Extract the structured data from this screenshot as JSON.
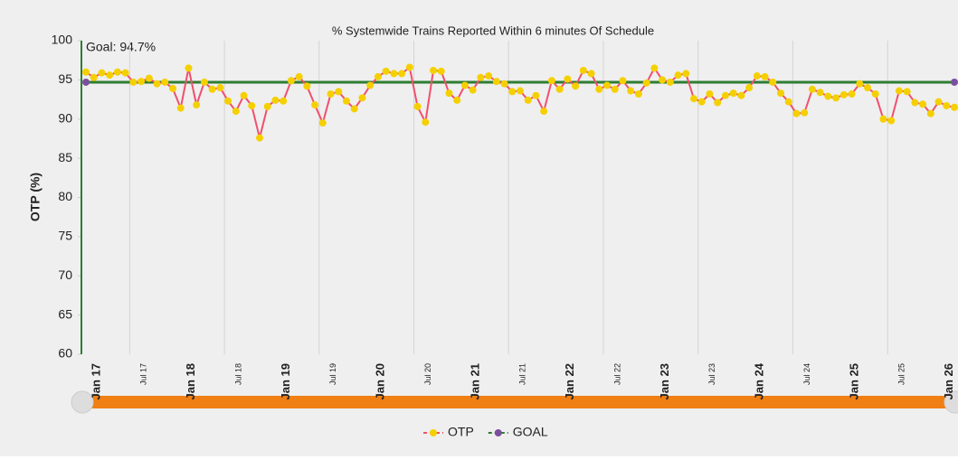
{
  "chart_data": {
    "type": "line",
    "title": "% Systemwide Trains Reported Within 6 minutes Of Schedule",
    "y_label": "OTP (%)",
    "annotation": "Goal: 94.7%",
    "categories": [
      "Jan 17",
      null,
      null,
      null,
      null,
      null,
      "Jul 17",
      null,
      null,
      null,
      null,
      null,
      "Jan 18",
      null,
      null,
      null,
      null,
      null,
      "Jul 18",
      null,
      null,
      null,
      null,
      null,
      "Jan 19",
      null,
      null,
      null,
      null,
      null,
      "Jul 19",
      null,
      null,
      null,
      null,
      null,
      "Jan 20",
      null,
      null,
      null,
      null,
      null,
      "Jul 20",
      null,
      null,
      null,
      null,
      null,
      "Jan 21",
      null,
      null,
      null,
      null,
      null,
      "Jul 21",
      null,
      null,
      null,
      null,
      null,
      "Jan 22",
      null,
      null,
      null,
      null,
      null,
      "Jul 22",
      null,
      null,
      null,
      null,
      null,
      "Jan 23",
      null,
      null,
      null,
      null,
      null,
      "Jul 23",
      null,
      null,
      null,
      null,
      null,
      "Jan 24",
      null,
      null,
      null,
      null,
      null,
      "Jul 24",
      null,
      null,
      null,
      null,
      null,
      "Jan 25",
      null,
      null,
      null,
      null,
      null,
      "Jul 25",
      null,
      null,
      null,
      null,
      null,
      "Jan 26",
      null,
      null
    ],
    "series": [
      {
        "name": "OTP",
        "color": "#f0506e",
        "marker_color": "#f5d000",
        "values": [
          96,
          95.3,
          95.9,
          95.6,
          96,
          95.9,
          94.7,
          94.8,
          95.2,
          94.5,
          94.7,
          93.9,
          91.4,
          96.5,
          91.8,
          94.7,
          93.8,
          94,
          92.3,
          91,
          93,
          91.7,
          87.6,
          91.6,
          92.4,
          92.3,
          94.9,
          95.4,
          94.2,
          91.8,
          89.5,
          93.2,
          93.5,
          92.3,
          91.3,
          92.7,
          94.3,
          95.4,
          96.1,
          95.8,
          95.8,
          96.6,
          91.6,
          89.6,
          96.2,
          96.1,
          93.3,
          92.4,
          94.3,
          93.7,
          95.3,
          95.5,
          94.8,
          94.5,
          93.5,
          93.6,
          92.4,
          93,
          91,
          94.9,
          93.8,
          95.1,
          94.2,
          96.2,
          95.8,
          93.8,
          94.3,
          93.8,
          94.9,
          93.6,
          93.2,
          94.6,
          96.5,
          95,
          94.7,
          95.6,
          95.8,
          92.6,
          92.2,
          93.2,
          92.1,
          93,
          93.3,
          93,
          94,
          95.5,
          95.4,
          94.7,
          93.3,
          92.2,
          90.7,
          90.8,
          93.8,
          93.4,
          92.9,
          92.7,
          93.1,
          93.2,
          94.5,
          94,
          93.2,
          90,
          89.8,
          93.6,
          93.5,
          92.1,
          91.9,
          90.7,
          92.2,
          91.7,
          91.5
        ]
      },
      {
        "name": "GOAL",
        "color": "#2e7d32",
        "marker_color": "#7b4f9e",
        "values": [
          94.7,
          94.7,
          94.7,
          94.7,
          94.7,
          94.7,
          94.7,
          94.7,
          94.7,
          94.7,
          94.7,
          94.7,
          94.7,
          94.7,
          94.7,
          94.7,
          94.7,
          94.7,
          94.7,
          94.7,
          94.7,
          94.7,
          94.7,
          94.7,
          94.7,
          94.7,
          94.7,
          94.7,
          94.7,
          94.7,
          94.7,
          94.7,
          94.7,
          94.7,
          94.7,
          94.7,
          94.7,
          94.7,
          94.7,
          94.7,
          94.7,
          94.7,
          94.7,
          94.7,
          94.7,
          94.7,
          94.7,
          94.7,
          94.7,
          94.7,
          94.7,
          94.7,
          94.7,
          94.7,
          94.7,
          94.7,
          94.7,
          94.7,
          94.7,
          94.7,
          94.7,
          94.7,
          94.7,
          94.7,
          94.7,
          94.7,
          94.7,
          94.7,
          94.7,
          94.7,
          94.7,
          94.7,
          94.7,
          94.7,
          94.7,
          94.7,
          94.7,
          94.7,
          94.7,
          94.7,
          94.7,
          94.7,
          94.7,
          94.7,
          94.7,
          94.7,
          94.7,
          94.7,
          94.7,
          94.7,
          94.7,
          94.7,
          94.7,
          94.7,
          94.7,
          94.7,
          94.7,
          94.7,
          94.7,
          94.7,
          94.7,
          94.7,
          94.7,
          94.7,
          94.7,
          94.7,
          94.7,
          94.7,
          94.7,
          94.7,
          94.7
        ]
      }
    ],
    "ylim": [
      60,
      100
    ],
    "yticks": [
      60,
      65,
      70,
      75,
      80,
      85,
      90,
      95,
      100
    ],
    "grid": true,
    "legend": "bottom"
  }
}
